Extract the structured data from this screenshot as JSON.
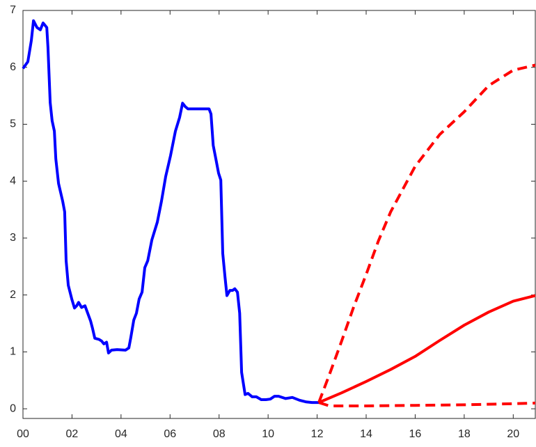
{
  "chart_data": {
    "type": "line",
    "xlim": [
      0,
      20.9
    ],
    "ylim": [
      -0.17,
      7
    ],
    "xticks": [
      {
        "value": 0,
        "label": "00"
      },
      {
        "value": 2,
        "label": "02"
      },
      {
        "value": 4,
        "label": "04"
      },
      {
        "value": 6,
        "label": "06"
      },
      {
        "value": 8,
        "label": "08"
      },
      10,
      12,
      14,
      16,
      18,
      20
    ],
    "yticks": [
      0,
      1,
      2,
      3,
      4,
      5,
      6,
      7
    ],
    "series": [
      {
        "color": "#0000ff",
        "style": "solid",
        "x": [
          0,
          0.2,
          0.34,
          0.43,
          0.57,
          0.71,
          0.82,
          0.97,
          1.02,
          1.11,
          1.19,
          1.28,
          1.34,
          1.45,
          1.62,
          1.7,
          1.76,
          1.85,
          1.99,
          2.1,
          2.19,
          2.27,
          2.39,
          2.53,
          2.64,
          2.76,
          2.84,
          2.93,
          3.1,
          3.21,
          3.3,
          3.41,
          3.49,
          3.61,
          3.84,
          4.18,
          4.32,
          4.4,
          4.52,
          4.63,
          4.74,
          4.86,
          4.97,
          5.09,
          5.26,
          5.48,
          5.65,
          5.82,
          6.02,
          6.22,
          6.39,
          6.51,
          6.62,
          6.73,
          7.02,
          7.36,
          7.59,
          7.67,
          7.76,
          7.87,
          7.98,
          8.07,
          8.15,
          8.24,
          8.32,
          8.44,
          8.55,
          8.64,
          8.75,
          8.84,
          8.92,
          9.06,
          9.18,
          9.35,
          9.52,
          9.72,
          9.91,
          10.09,
          10.26,
          10.43,
          10.71,
          10.99,
          11.28,
          11.56,
          11.79,
          12.07
        ],
        "values": [
          5.98,
          6.1,
          6.47,
          6.82,
          6.7,
          6.66,
          6.78,
          6.7,
          6.35,
          5.38,
          5.06,
          4.88,
          4.39,
          3.96,
          3.65,
          3.46,
          2.6,
          2.17,
          1.93,
          1.77,
          1.81,
          1.87,
          1.78,
          1.81,
          1.68,
          1.54,
          1.41,
          1.24,
          1.22,
          1.19,
          1.14,
          1.17,
          0.98,
          1.03,
          1.04,
          1.03,
          1.07,
          1.25,
          1.56,
          1.68,
          1.93,
          2.05,
          2.48,
          2.6,
          2.97,
          3.28,
          3.65,
          4.08,
          4.45,
          4.88,
          5.12,
          5.37,
          5.31,
          5.27,
          5.27,
          5.27,
          5.27,
          5.18,
          4.63,
          4.39,
          4.14,
          4.02,
          2.73,
          2.32,
          1.99,
          2.08,
          2.08,
          2.11,
          2.05,
          1.68,
          0.64,
          0.25,
          0.27,
          0.21,
          0.21,
          0.16,
          0.16,
          0.17,
          0.22,
          0.22,
          0.18,
          0.2,
          0.15,
          0.12,
          0.11,
          0.11
        ]
      },
      {
        "color": "#ff0000",
        "style": "solid",
        "x": [
          12.07,
          13,
          14,
          15,
          16,
          17,
          18,
          19,
          20,
          20.9
        ],
        "values": [
          0.11,
          0.28,
          0.48,
          0.69,
          0.92,
          1.2,
          1.47,
          1.7,
          1.89,
          1.99
        ]
      },
      {
        "color": "#ff0000",
        "style": "dashed",
        "x": [
          12.07,
          12.5,
          13,
          13.5,
          14,
          14.5,
          15,
          16,
          17,
          18,
          19,
          20,
          20.9
        ],
        "values": [
          0.11,
          0.6,
          1.19,
          1.8,
          2.36,
          2.95,
          3.46,
          4.26,
          4.82,
          5.22,
          5.68,
          5.95,
          6.04
        ]
      },
      {
        "color": "#ff0000",
        "style": "dashed",
        "x": [
          12.07,
          12.5,
          14,
          16,
          18,
          20,
          20.9
        ],
        "values": [
          0.11,
          0.05,
          0.05,
          0.06,
          0.07,
          0.09,
          0.1
        ]
      }
    ]
  }
}
